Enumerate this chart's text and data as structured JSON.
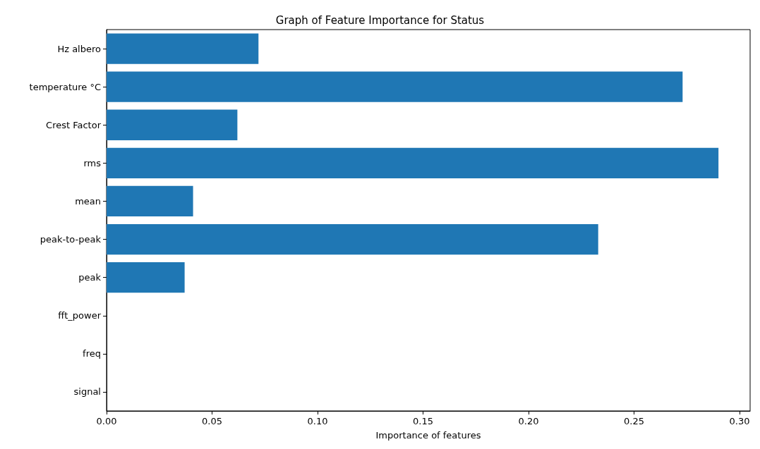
{
  "chart_data": {
    "type": "bar",
    "orientation": "horizontal",
    "title": "Graph of Feature Importance for Status",
    "xlabel": "Importance of features",
    "categories": [
      "Hz albero",
      "temperature °C",
      "Crest Factor",
      "rms",
      "mean",
      "peak-to-peak",
      "peak",
      "fft_power",
      "freq",
      "signal"
    ],
    "values": [
      0.072,
      0.273,
      0.062,
      0.29,
      0.041,
      0.233,
      0.037,
      0,
      0,
      0
    ],
    "color": "#1f77b4",
    "xlim": [
      0,
      0.305
    ],
    "xticks": [
      {
        "value": 0,
        "label": "0.00"
      },
      {
        "value": 0.05,
        "label": "0.05"
      },
      {
        "value": 0.1,
        "label": "0.10"
      },
      {
        "value": 0.15,
        "label": "0.15"
      },
      {
        "value": 0.2,
        "label": "0.20"
      },
      {
        "value": 0.25,
        "label": "0.25"
      },
      {
        "value": 0.3,
        "label": "0.30"
      }
    ],
    "grid": false
  }
}
